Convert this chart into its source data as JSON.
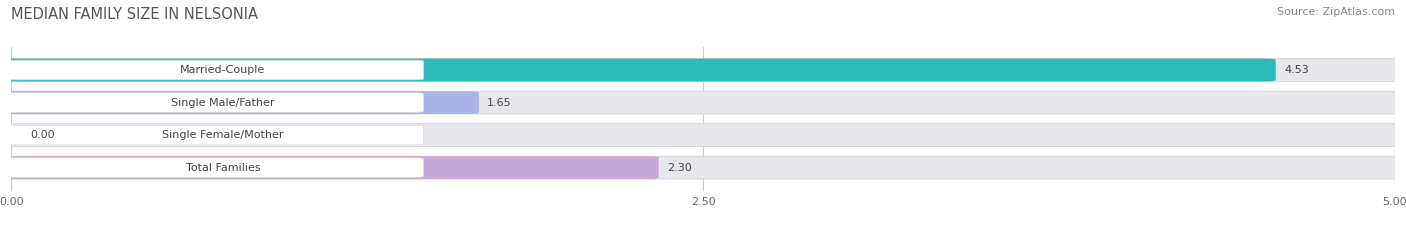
{
  "title": "MEDIAN FAMILY SIZE IN NELSONIA",
  "source": "Source: ZipAtlas.com",
  "categories": [
    "Married-Couple",
    "Single Male/Father",
    "Single Female/Mother",
    "Total Families"
  ],
  "values": [
    4.53,
    1.65,
    0.0,
    2.3
  ],
  "bar_colors": [
    "#2bbcb8",
    "#aab4e8",
    "#f4a0b4",
    "#c8a8d8"
  ],
  "xlim": [
    0,
    5.0
  ],
  "xticks": [
    0.0,
    2.5,
    5.0
  ],
  "xtick_labels": [
    "0.00",
    "2.50",
    "5.00"
  ],
  "bar_height": 0.62,
  "background_color": "#ffffff",
  "bar_bg_color": "#e8e8ec",
  "title_fontsize": 10.5,
  "label_fontsize": 8,
  "value_fontsize": 8,
  "source_fontsize": 8
}
